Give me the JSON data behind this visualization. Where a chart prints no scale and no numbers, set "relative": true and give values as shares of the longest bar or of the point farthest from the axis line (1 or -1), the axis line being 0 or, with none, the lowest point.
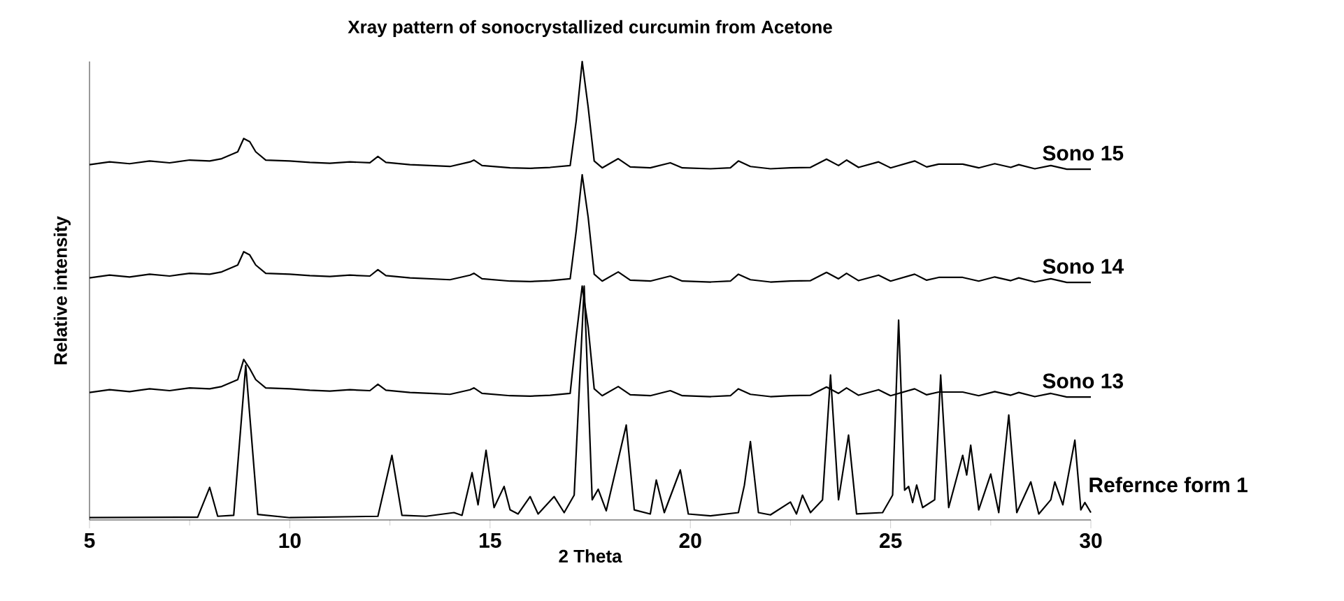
{
  "chart_data": {
    "type": "line",
    "title": "Xray pattern of sonocrystallized curcumin from Acetone",
    "xlabel": "2 Theta",
    "ylabel": "Relative intensity",
    "relative": true,
    "tick_labels": "x",
    "xlim": [
      5,
      30
    ],
    "xticks": [
      5,
      10,
      15,
      20,
      25,
      30
    ],
    "x": [
      5,
      5.5,
      6,
      6.5,
      7,
      7.5,
      8,
      8.3,
      8.7,
      8.85,
      9.0,
      9.15,
      9.4,
      10,
      10.5,
      11,
      11.5,
      12,
      12.2,
      12.4,
      13,
      13.5,
      14,
      14.5,
      14.6,
      14.8,
      15.5,
      16,
      16.5,
      17,
      17.15,
      17.3,
      17.45,
      17.6,
      17.8,
      18.2,
      18.5,
      19,
      19.5,
      19.8,
      20.5,
      21,
      21.2,
      21.5,
      22,
      22.5,
      23,
      23.4,
      23.7,
      23.9,
      24.2,
      24.7,
      25,
      25.6,
      25.9,
      26.2,
      26.8,
      27.2,
      27.6,
      28,
      28.2,
      28.6,
      29,
      29.4,
      30
    ],
    "series": [
      {
        "name": "Sono 15",
        "color": "#000000",
        "values": [
          0.775,
          0.781,
          0.777,
          0.783,
          0.779,
          0.785,
          0.783,
          0.788,
          0.803,
          0.832,
          0.825,
          0.803,
          0.785,
          0.783,
          0.78,
          0.778,
          0.781,
          0.779,
          0.793,
          0.78,
          0.775,
          0.773,
          0.771,
          0.781,
          0.785,
          0.773,
          0.768,
          0.767,
          0.769,
          0.773,
          0.87,
          1.0,
          0.9,
          0.783,
          0.768,
          0.788,
          0.77,
          0.768,
          0.779,
          0.768,
          0.766,
          0.768,
          0.783,
          0.771,
          0.766,
          0.768,
          0.769,
          0.787,
          0.773,
          0.785,
          0.769,
          0.781,
          0.768,
          0.783,
          0.77,
          0.776,
          0.776,
          0.768,
          0.777,
          0.769,
          0.775,
          0.766,
          0.773,
          0.765,
          0.765
        ]
      },
      {
        "name": "Sono 14",
        "color": "#000000",
        "values": [
          0.528,
          0.534,
          0.53,
          0.536,
          0.532,
          0.538,
          0.536,
          0.541,
          0.556,
          0.585,
          0.578,
          0.556,
          0.538,
          0.536,
          0.533,
          0.531,
          0.534,
          0.532,
          0.546,
          0.533,
          0.528,
          0.526,
          0.524,
          0.534,
          0.538,
          0.526,
          0.521,
          0.52,
          0.522,
          0.526,
          0.63,
          0.753,
          0.66,
          0.536,
          0.521,
          0.541,
          0.523,
          0.521,
          0.532,
          0.521,
          0.519,
          0.521,
          0.536,
          0.524,
          0.519,
          0.521,
          0.522,
          0.54,
          0.526,
          0.538,
          0.522,
          0.534,
          0.521,
          0.536,
          0.523,
          0.529,
          0.529,
          0.521,
          0.53,
          0.522,
          0.528,
          0.519,
          0.526,
          0.518,
          0.518
        ]
      },
      {
        "name": "Sono 13",
        "color": "#000000",
        "values": [
          0.278,
          0.284,
          0.28,
          0.286,
          0.282,
          0.288,
          0.286,
          0.291,
          0.306,
          0.35,
          0.33,
          0.306,
          0.288,
          0.286,
          0.283,
          0.281,
          0.284,
          0.282,
          0.296,
          0.283,
          0.278,
          0.276,
          0.274,
          0.284,
          0.288,
          0.276,
          0.271,
          0.27,
          0.272,
          0.276,
          0.4,
          0.51,
          0.42,
          0.286,
          0.271,
          0.291,
          0.273,
          0.271,
          0.282,
          0.271,
          0.269,
          0.271,
          0.286,
          0.274,
          0.269,
          0.271,
          0.272,
          0.29,
          0.276,
          0.288,
          0.272,
          0.284,
          0.271,
          0.286,
          0.273,
          0.279,
          0.279,
          0.271,
          0.28,
          0.272,
          0.278,
          0.269,
          0.276,
          0.268,
          0.268
        ]
      },
      {
        "name": "Refernce form 1",
        "color": "#000000",
        "x": [
          5,
          7.7,
          8.0,
          8.2,
          8.6,
          8.9,
          9.2,
          10,
          12.2,
          12.55,
          12.8,
          13.4,
          14.1,
          14.3,
          14.55,
          14.7,
          14.9,
          15.1,
          15.35,
          15.5,
          15.7,
          16.0,
          16.2,
          16.6,
          16.85,
          17.1,
          17.35,
          17.55,
          17.7,
          17.9,
          18.4,
          18.6,
          19.0,
          19.15,
          19.35,
          19.75,
          19.95,
          20.5,
          21.2,
          21.35,
          21.5,
          21.7,
          22.0,
          22.5,
          22.65,
          22.8,
          23.0,
          23.3,
          23.5,
          23.7,
          23.95,
          24.15,
          24.8,
          25.05,
          25.2,
          25.35,
          25.45,
          25.55,
          25.65,
          25.8,
          26.1,
          26.25,
          26.45,
          26.8,
          26.9,
          27.0,
          27.2,
          27.5,
          27.7,
          27.95,
          28.15,
          28.5,
          28.7,
          29.0,
          29.1,
          29.3,
          29.6,
          29.75,
          29.85,
          30.0
        ],
        "values": [
          0.005,
          0.006,
          0.071,
          0.008,
          0.01,
          0.337,
          0.012,
          0.005,
          0.008,
          0.141,
          0.01,
          0.008,
          0.016,
          0.01,
          0.103,
          0.033,
          0.152,
          0.027,
          0.073,
          0.022,
          0.013,
          0.051,
          0.013,
          0.051,
          0.016,
          0.054,
          0.51,
          0.044,
          0.067,
          0.02,
          0.207,
          0.022,
          0.013,
          0.087,
          0.016,
          0.109,
          0.013,
          0.009,
          0.016,
          0.076,
          0.171,
          0.016,
          0.011,
          0.039,
          0.013,
          0.054,
          0.016,
          0.044,
          0.316,
          0.044,
          0.185,
          0.013,
          0.016,
          0.054,
          0.436,
          0.065,
          0.073,
          0.038,
          0.076,
          0.027,
          0.044,
          0.316,
          0.027,
          0.141,
          0.098,
          0.163,
          0.022,
          0.1,
          0.016,
          0.229,
          0.016,
          0.083,
          0.013,
          0.044,
          0.083,
          0.033,
          0.174,
          0.022,
          0.038,
          0.016
        ]
      }
    ]
  }
}
